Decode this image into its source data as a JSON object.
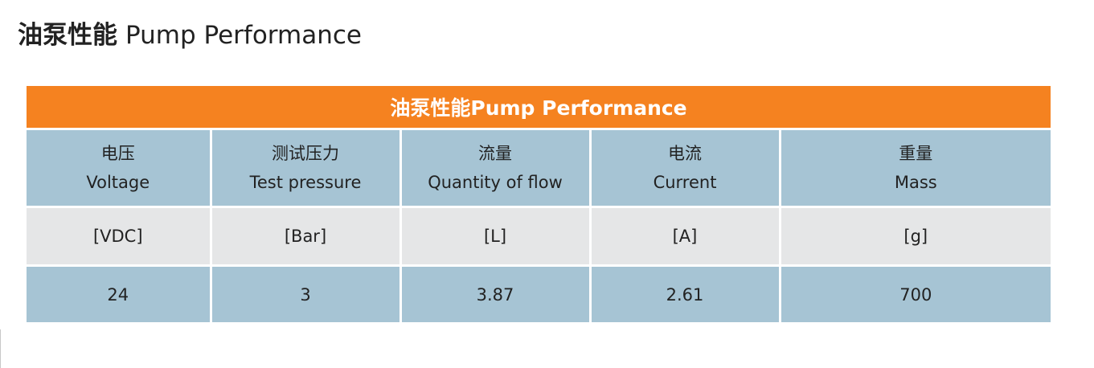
{
  "heading": {
    "cn": "油泵性能",
    "en": "Pump Performance"
  },
  "table": {
    "title": "油泵性能Pump Performance",
    "columns": [
      {
        "cn": "电压",
        "en": "Voltage",
        "unit": "[VDC]",
        "value": "24"
      },
      {
        "cn": "测试压力",
        "en": "Test pressure",
        "unit": "[Bar]",
        "value": "3"
      },
      {
        "cn": "流量",
        "en": "Quantity of flow",
        "unit": "[L]",
        "value": "3.87"
      },
      {
        "cn": "电流",
        "en": "Current",
        "unit": "[A]",
        "value": "2.61"
      },
      {
        "cn": "重量",
        "en": "Mass",
        "unit": "[g]",
        "value": "700"
      }
    ]
  },
  "colors": {
    "title_bar": "#f58220",
    "header_bg": "#a6c4d4",
    "unit_bg": "#e5e6e7",
    "value_bg": "#a6c4d4"
  }
}
